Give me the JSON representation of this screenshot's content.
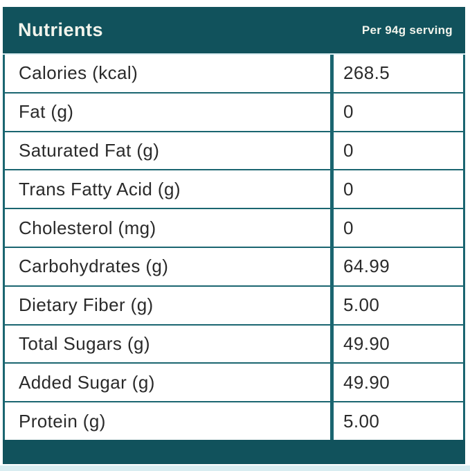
{
  "header": {
    "title": "Nutrients",
    "serving_label": "Per 94g serving"
  },
  "table": {
    "rows": [
      {
        "label": "Calories (kcal)",
        "value": "268.5"
      },
      {
        "label": "Fat (g)",
        "value": "0"
      },
      {
        "label": "Saturated Fat (g)",
        "value": "0"
      },
      {
        "label": "Trans Fatty Acid (g)",
        "value": "0"
      },
      {
        "label": "Cholesterol (mg)",
        "value": "0"
      },
      {
        "label": "Carbohydrates (g)",
        "value": "64.99"
      },
      {
        "label": "Dietary Fiber (g)",
        "value": "5.00"
      },
      {
        "label": "Total Sugars (g)",
        "value": "49.90"
      },
      {
        "label": "Added Sugar (g)",
        "value": "49.90"
      },
      {
        "label": "Protein (g)",
        "value": "5.00"
      }
    ]
  },
  "colors": {
    "header_band": "#11525c",
    "row_border": "#1a6570",
    "light_gap": "#d9edf1",
    "row_text": "#2a2a2a",
    "header_text": "#f2f4ec"
  }
}
